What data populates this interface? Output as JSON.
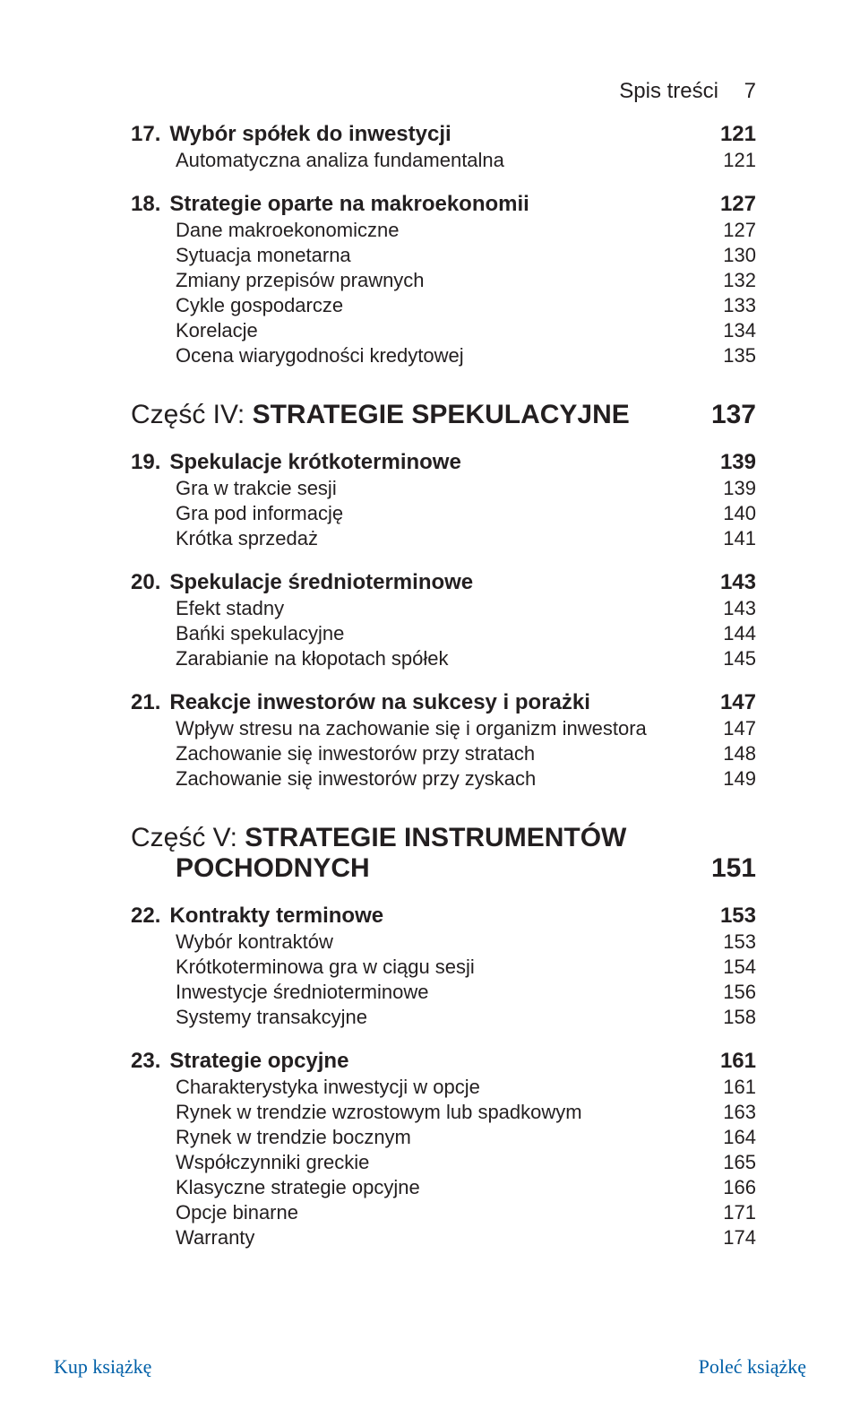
{
  "header": {
    "title": "Spis treści",
    "page": "7"
  },
  "toc": [
    {
      "kind": "chapter",
      "num": "17.",
      "title": "Wybór spółek do inwestycji",
      "page": "121"
    },
    {
      "kind": "sub",
      "title": "Automatyczna analiza fundamentalna",
      "page": "121"
    },
    {
      "kind": "chapter",
      "num": "18.",
      "title": "Strategie oparte na makroekonomii",
      "page": "127"
    },
    {
      "kind": "sub",
      "title": "Dane makroekonomiczne",
      "page": "127"
    },
    {
      "kind": "sub",
      "title": "Sytuacja monetarna",
      "page": "130"
    },
    {
      "kind": "sub",
      "title": "Zmiany przepisów prawnych",
      "page": "132"
    },
    {
      "kind": "sub",
      "title": "Cykle gospodarcze",
      "page": "133"
    },
    {
      "kind": "sub",
      "title": "Korelacje",
      "page": "134"
    },
    {
      "kind": "sub",
      "title": "Ocena wiarygodności kredytowej",
      "page": "135"
    },
    {
      "kind": "part",
      "label": "Część IV: ",
      "title": "STRATEGIE SPEKULACYJNE",
      "page": "137"
    },
    {
      "kind": "chapter",
      "num": "19.",
      "title": "Spekulacje krótkoterminowe",
      "page": "139"
    },
    {
      "kind": "sub",
      "title": "Gra w trakcie sesji",
      "page": "139"
    },
    {
      "kind": "sub",
      "title": "Gra pod informację",
      "page": "140"
    },
    {
      "kind": "sub",
      "title": "Krótka sprzedaż",
      "page": "141"
    },
    {
      "kind": "chapter",
      "num": "20.",
      "title": "Spekulacje średnioterminowe",
      "page": "143"
    },
    {
      "kind": "sub",
      "title": "Efekt stadny",
      "page": "143"
    },
    {
      "kind": "sub",
      "title": "Bańki spekulacyjne",
      "page": "144"
    },
    {
      "kind": "sub",
      "title": "Zarabianie na kłopotach spółek",
      "page": "145"
    },
    {
      "kind": "chapter",
      "num": "21.",
      "title": "Reakcje inwestorów na sukcesy i porażki",
      "page": "147"
    },
    {
      "kind": "sub",
      "title": "Wpływ stresu na zachowanie się i organizm inwestora",
      "page": "147"
    },
    {
      "kind": "sub",
      "title": "Zachowanie się inwestorów przy stratach",
      "page": "148"
    },
    {
      "kind": "sub",
      "title": "Zachowanie się inwestorów przy zyskach",
      "page": "149"
    },
    {
      "kind": "part2",
      "line1_label": "Część V: ",
      "line1_title": "STRATEGIE INSTRUMENTÓW",
      "line2_title": "POCHODNYCH",
      "page": "151"
    },
    {
      "kind": "chapter",
      "num": "22.",
      "title": "Kontrakty terminowe",
      "page": "153"
    },
    {
      "kind": "sub",
      "title": "Wybór kontraktów",
      "page": "153"
    },
    {
      "kind": "sub",
      "title": "Krótkoterminowa gra w ciągu sesji",
      "page": "154"
    },
    {
      "kind": "sub",
      "title": "Inwestycje średnioterminowe",
      "page": "156"
    },
    {
      "kind": "sub",
      "title": "Systemy transakcyjne",
      "page": "158"
    },
    {
      "kind": "chapter",
      "num": "23.",
      "title": "Strategie opcyjne",
      "page": "161"
    },
    {
      "kind": "sub",
      "title": "Charakterystyka inwestycji w opcje",
      "page": "161"
    },
    {
      "kind": "sub",
      "title": "Rynek w trendzie wzrostowym lub spadkowym",
      "page": "163"
    },
    {
      "kind": "sub",
      "title": "Rynek w trendzie bocznym",
      "page": "164"
    },
    {
      "kind": "sub",
      "title": "Współczynniki greckie",
      "page": "165"
    },
    {
      "kind": "sub",
      "title": "Klasyczne strategie opcyjne",
      "page": "166"
    },
    {
      "kind": "sub",
      "title": "Opcje binarne",
      "page": "171"
    },
    {
      "kind": "sub",
      "title": "Warranty",
      "page": "174"
    }
  ],
  "footer": {
    "left": "Kup książkę",
    "right": "Poleć książkę"
  }
}
